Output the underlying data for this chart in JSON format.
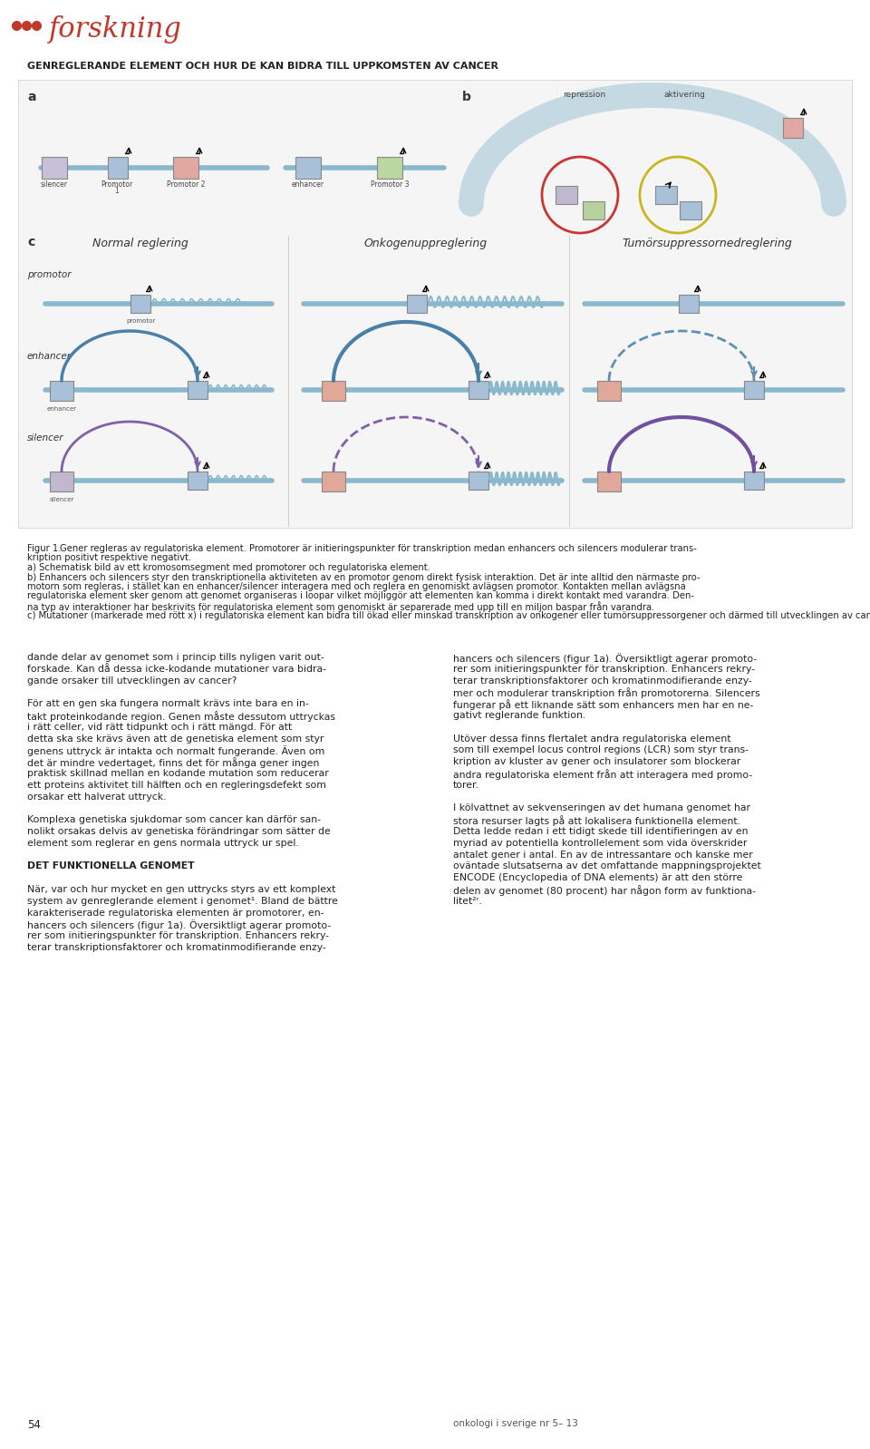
{
  "title_dots_color": "#c0392b",
  "title_text": "forskning",
  "title_fontsize": 22,
  "header_text": "GENREGLERANDE ELEMENT OCH HUR DE KAN BIDRA TILL UPPKOMSTEN AV CANCER",
  "header_fontsize": 8,
  "bg_color": "#ffffff",
  "fig_caption_bold": "Figur 1. ",
  "fig_caption_rest": "Gener regleras av regulatoriska element. Promotorer är initieringspunkter för transkription medan enhancers och silencers modulerar transkription positivt respektive negativt.",
  "fig_caption_a_bold": "a) ",
  "fig_caption_a_rest": "Schematisk bild av ett kromosomsegment med promotorer och regulatoriska element.",
  "fig_caption_b_bold": "b) ",
  "fig_caption_b_rest": "Enhancers och silencers styr den transkriptionella aktiviteten av en promotor genom direkt fysisk interaktion. Det är inte alltid den närmaste promotorn som regleras, i stället kan en enhancer/silencer interagera med och reglera en genomiskt avlägsen promotor. Kontakten mellan avlägsna regulatoriska element sker genom att genomet organiseras i loopar vilket möjliggör att elementen kan komma i direkt kontakt med varandra. Denna typ av interaktioner har beskrivits för regulatoriska element som genomiskt är separerade med upp till en miljon baspar från varandra.",
  "fig_caption_c_bold": "c) ",
  "fig_caption_c_rest": "Mutationer (markerade med rött x) i regulatoriska element kan bidra till ökad eller minskad transkription av onkogener eller tumörsuppressorgener och därmed till utvecklingen av cancer.",
  "left_col": [
    "dande delar av genomet som i princip tills nyligen varit out-",
    "forskade. Kan då dessa icke-kodande mutationer vara bidra-",
    "gande orsaker till utvecklingen av cancer?",
    "",
    "För att en gen ska fungera normalt krävs inte bara en in-",
    "takt proteinkodande region. Genen måste dessutom uttryckas",
    "i rätt celler, vid rätt tidpunkt och i rätt mängd. För att",
    "detta ska ske krävs även att de genetiska element som styr",
    "genens uttryck är intakta och normalt fungerande. Även om",
    "det är mindre vedertaget, finns det för många gener ingen",
    "praktisk skillnad mellan en kodande mutation som reducerar",
    "ett proteins aktivitet till hälften och en regleringsdefekt som",
    "orsakar ett halverat uttryck.",
    "",
    "Komplexa genetiska sjukdomar som cancer kan därför san-",
    "nolikt orsakas delvis av genetiska förändringar som sätter de",
    "element som reglerar en gens normala uttryck ur spel.",
    "",
    "DET FUNKTIONELLA GENOMET",
    "",
    "När, var och hur mycket en gen uttrycks styrs av ett komplext",
    "system av genreglerande element i genomet¹. Bland de bättre",
    "karakteriserade regulatoriska elementen är promotorer, en-",
    "hancers och silencers (figur 1a). Översiktligt agerar promoto-",
    "rer som initieringspunkter för transkription. Enhancers rekry-",
    "terar transkriptionsfaktorer och kromatinmodifierande enzy-"
  ],
  "right_col": [
    "hancers och silencers (figur 1a). Översiktligt agerar promoto-",
    "rer som initieringspunkter för transkription. Enhancers rekry-",
    "terar transkriptionsfaktorer och kromatinmodifierande enzy-",
    "mer och modulerar transkription från promotorerna. Silencers",
    "fungerar på ett liknande sätt som enhancers men har en ne-",
    "gativt reglerande funktion.",
    "",
    "Utöver dessa finns flertalet andra regulatoriska element",
    "som till exempel locus control regions (LCR) som styr trans-",
    "kription av kluster av gener och insulatorer som blockerar",
    "andra regulatoriska element från att interagera med promo-",
    "torer.",
    "",
    "I kölvattnet av sekvenseringen av det humana genomet har",
    "stora resurser lagts på att lokalisera funktionella element.",
    "Detta ledde redan i ett tidigt skede till identifieringen av en",
    "myriad av potentiella kontrollelement som vida överskrider",
    "antalet gener i antal. En av de intressantare och kanske mer",
    "oväntade slutsatserna av det omfattande mappningsprojektet",
    "ENCODE (Encyclopedia of DNA elements) är att den större",
    "delen av genomet (80 procent) har någon form av funktiona-",
    "litet²ʳ."
  ],
  "page_number": "54",
  "journal_text": "onkologi i sverige nr 5– 13"
}
